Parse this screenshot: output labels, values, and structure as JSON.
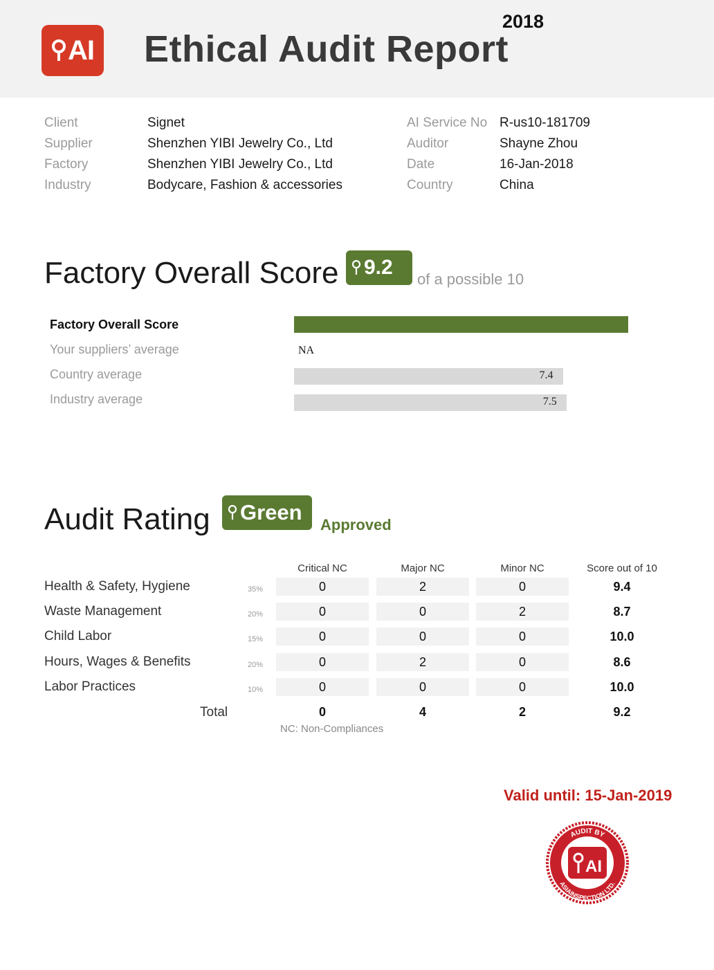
{
  "header": {
    "logo_text": "AI",
    "title": "Ethical Audit Report",
    "year": "2018"
  },
  "info": {
    "left": [
      {
        "label": "Client",
        "value": "Signet"
      },
      {
        "label": "Supplier",
        "value": "Shenzhen YIBI Jewelry Co., Ltd"
      },
      {
        "label": "Factory",
        "value": "Shenzhen YIBI Jewelry Co., Ltd"
      },
      {
        "label": "Industry",
        "value": "Bodycare, Fashion & accessories"
      }
    ],
    "right": [
      {
        "label": "AI Service No",
        "value": "R-us10-181709"
      },
      {
        "label": "Auditor",
        "value": "Shayne Zhou"
      },
      {
        "label": "Date",
        "value": "16-Jan-2018"
      },
      {
        "label": "Country",
        "value": "China"
      }
    ]
  },
  "overall": {
    "title": "Factory Overall Score",
    "badge_value": "9.2",
    "suffix": "of a possible 10"
  },
  "chart_data": {
    "type": "bar",
    "orientation": "horizontal",
    "xlim": [
      0,
      10
    ],
    "categories": [
      "Factory Overall Score",
      "Your suppliers’ average",
      "Country average",
      "Industry average"
    ],
    "values": [
      9.2,
      null,
      7.4,
      7.5
    ],
    "value_labels": [
      "9.2",
      "NA",
      "7.4",
      "7.5"
    ],
    "highlight_color": "#5a7a32",
    "other_color": "#d9d9d9"
  },
  "rating": {
    "title": "Audit Rating",
    "badge": "Green",
    "status": "Approved",
    "columns": [
      "Critical NC",
      "Major NC",
      "Minor NC",
      "Score out of 10"
    ],
    "rows": [
      {
        "label": "Health & Safety, Hygiene",
        "weight": "35%",
        "critical": "0",
        "major": "2",
        "minor": "0",
        "score": "9.4"
      },
      {
        "label": "Waste Management",
        "weight": "20%",
        "critical": "0",
        "major": "0",
        "minor": "2",
        "score": "8.7"
      },
      {
        "label": "Child Labor",
        "weight": "15%",
        "critical": "0",
        "major": "0",
        "minor": "0",
        "score": "10.0"
      },
      {
        "label": "Hours, Wages & Benefits",
        "weight": "20%",
        "critical": "0",
        "major": "2",
        "minor": "0",
        "score": "8.6"
      },
      {
        "label": "Labor Practices",
        "weight": "10%",
        "critical": "0",
        "major": "0",
        "minor": "0",
        "score": "10.0"
      }
    ],
    "total": {
      "label": "Total",
      "critical": "0",
      "major": "4",
      "minor": "2",
      "score": "9.2"
    },
    "note": "NC: Non-Compliances"
  },
  "validity": "Valid until: 15-Jan-2019",
  "stamp": {
    "text": "AUDIT BY ASIAINSPECTION LTD.",
    "logo": "AI",
    "color": "#c8202a"
  },
  "colors": {
    "brand_red": "#d63a26",
    "green": "#5a7a32",
    "valid_red": "#c0211b"
  }
}
